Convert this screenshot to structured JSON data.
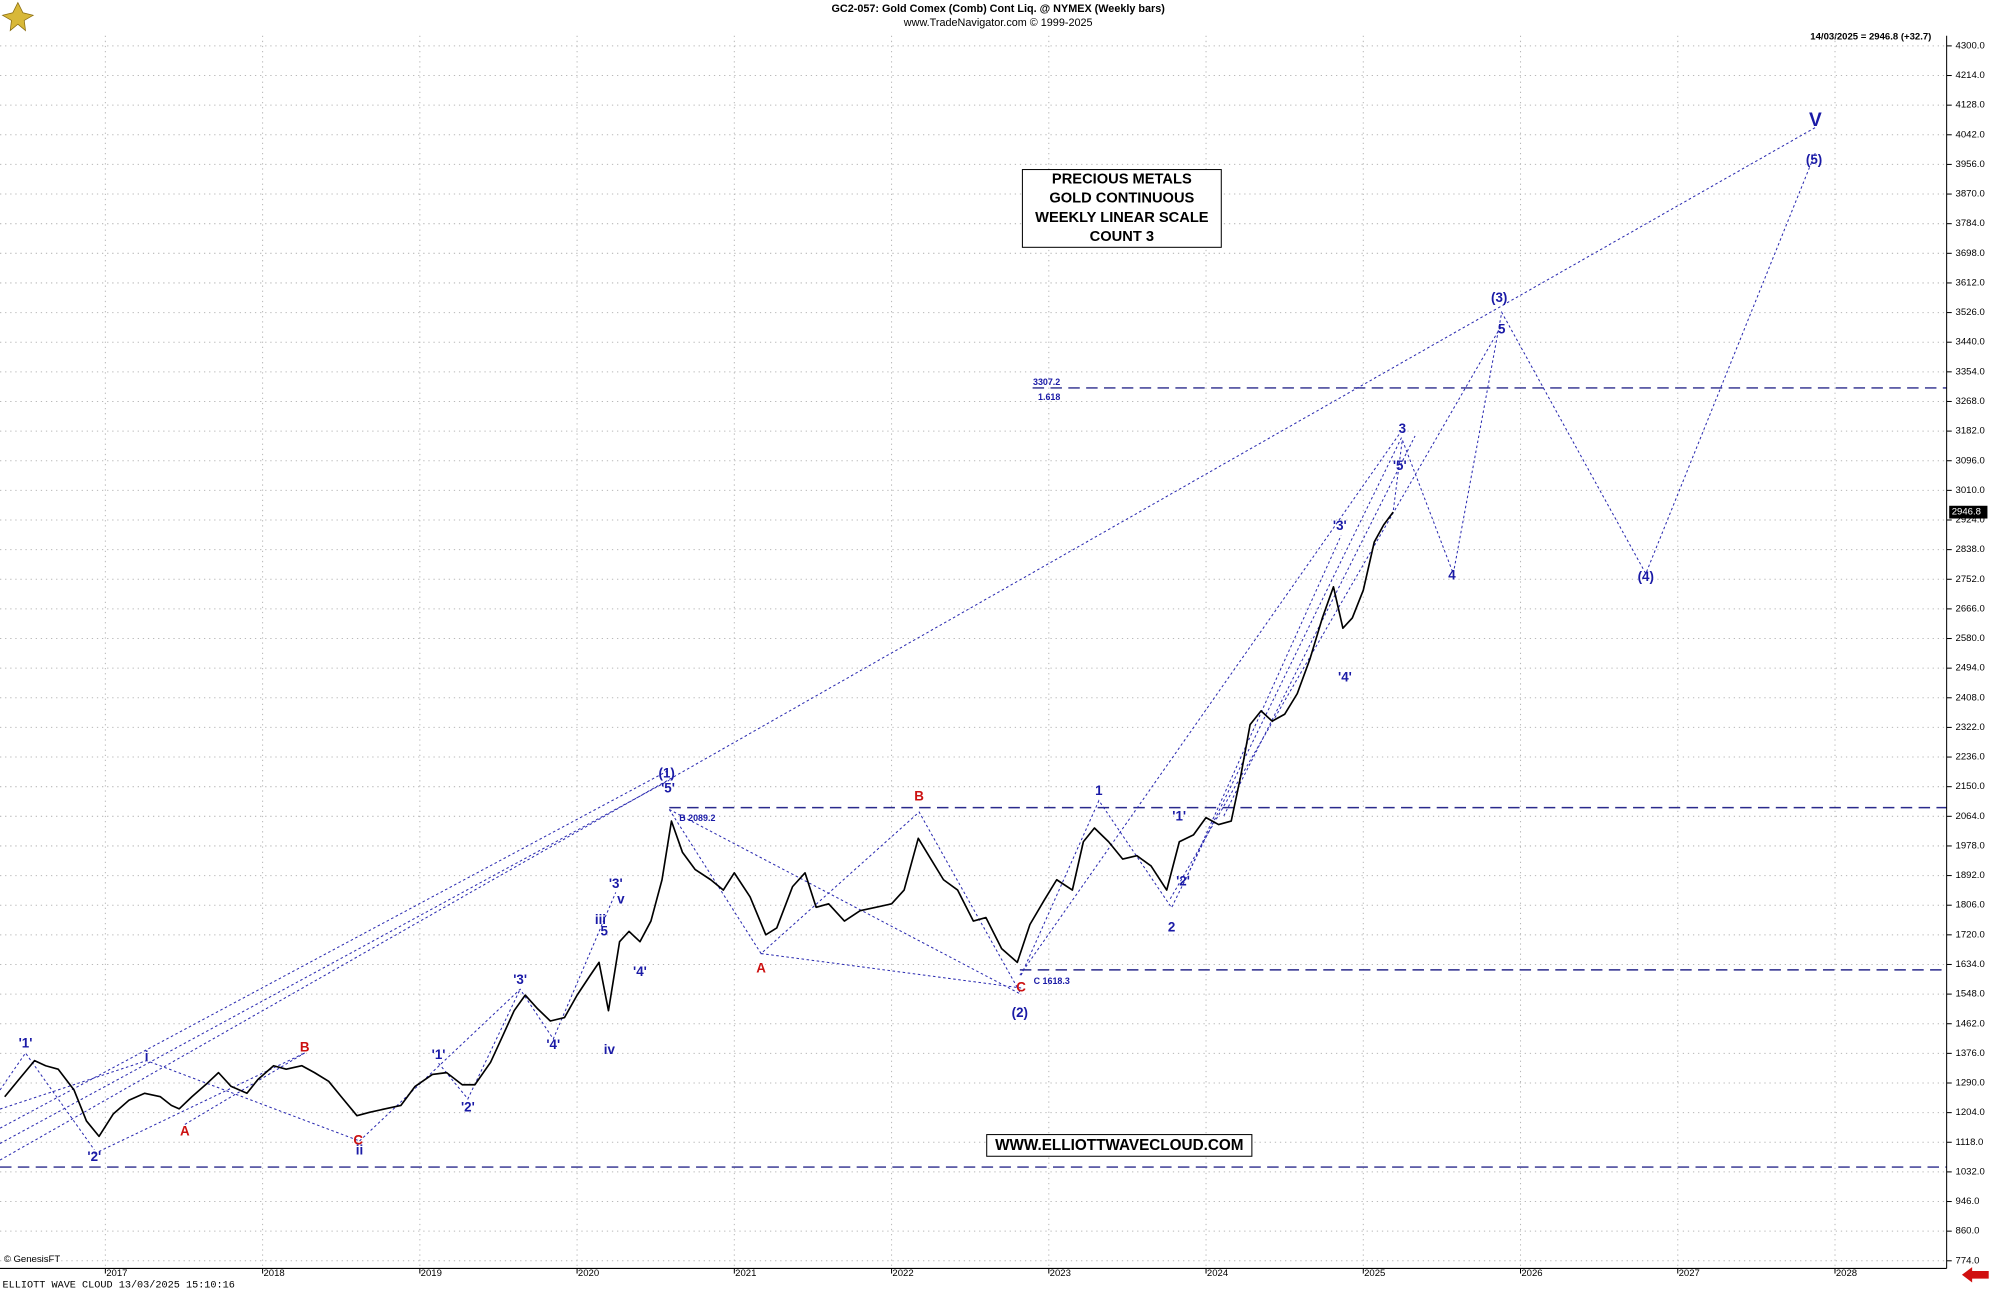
{
  "chart_data": {
    "type": "line",
    "title": "GC2-057:  Gold Comex (Comb) Cont Liq. @ NYMEX  (Weekly bars)",
    "subtitle": "www.TradeNavigator.com © 1999-2025",
    "status": "14/03/2025 = 2946.8 (+32.7)",
    "info_box": [
      "PRECIOUS METALS",
      "GOLD CONTINUOUS",
      "WEEKLY LINEAR SCALE",
      "COUNT 3"
    ],
    "watermark": "WWW.ELLIOTTWAVECLOUD.COM",
    "credit": "© GenesisFT",
    "footer": "ELLIOTT WAVE CLOUD   13/03/2025 15:10:16",
    "color": "#000000",
    "x": [
      2016.36,
      2016.45,
      2016.55,
      2016.62,
      2016.7,
      2016.8,
      2016.88,
      2016.96,
      2017.05,
      2017.15,
      2017.25,
      2017.35,
      2017.42,
      2017.47,
      2017.55,
      2017.65,
      2017.72,
      2017.8,
      2017.9,
      2017.97,
      2018.07,
      2018.15,
      2018.25,
      2018.33,
      2018.42,
      2018.5,
      2018.6,
      2018.68,
      2018.78,
      2018.88,
      2018.97,
      2019.08,
      2019.17,
      2019.27,
      2019.35,
      2019.45,
      2019.52,
      2019.6,
      2019.67,
      2019.75,
      2019.83,
      2019.92,
      2020.0,
      2020.08,
      2020.14,
      2020.2,
      2020.27,
      2020.33,
      2020.4,
      2020.47,
      2020.54,
      2020.6,
      2020.67,
      2020.75,
      2020.85,
      2020.93,
      2021.0,
      2021.1,
      2021.2,
      2021.27,
      2021.37,
      2021.45,
      2021.52,
      2021.6,
      2021.7,
      2021.8,
      2021.9,
      2022.0,
      2022.08,
      2022.17,
      2022.25,
      2022.33,
      2022.42,
      2022.52,
      2022.6,
      2022.7,
      2022.8,
      2022.88,
      2022.97,
      2023.05,
      2023.15,
      2023.22,
      2023.29,
      2023.38,
      2023.47,
      2023.56,
      2023.65,
      2023.75,
      2023.83,
      2023.92,
      2024.0,
      2024.08,
      2024.16,
      2024.22,
      2024.28,
      2024.35,
      2024.42,
      2024.5,
      2024.58,
      2024.66,
      2024.74,
      2024.81,
      2024.87,
      2024.93,
      2025.0,
      2025.07,
      2025.13,
      2025.19
    ],
    "values": [
      1250,
      1300,
      1355,
      1340,
      1330,
      1270,
      1180,
      1135,
      1200,
      1240,
      1260,
      1250,
      1225,
      1215,
      1250,
      1290,
      1320,
      1280,
      1260,
      1300,
      1340,
      1330,
      1340,
      1320,
      1295,
      1250,
      1195,
      1205,
      1215,
      1225,
      1280,
      1315,
      1320,
      1285,
      1285,
      1350,
      1420,
      1500,
      1545,
      1505,
      1470,
      1480,
      1545,
      1600,
      1640,
      1500,
      1700,
      1730,
      1700,
      1760,
      1880,
      2050,
      1960,
      1910,
      1880,
      1850,
      1900,
      1830,
      1720,
      1740,
      1860,
      1900,
      1800,
      1810,
      1760,
      1790,
      1800,
      1810,
      1850,
      2000,
      1940,
      1880,
      1850,
      1760,
      1770,
      1680,
      1640,
      1750,
      1820,
      1880,
      1850,
      1990,
      2030,
      1990,
      1940,
      1950,
      1920,
      1850,
      1990,
      2010,
      2060,
      2040,
      2050,
      2180,
      2330,
      2370,
      2340,
      2360,
      2420,
      2520,
      2640,
      2730,
      2610,
      2640,
      2720,
      2860,
      2910,
      2946.8
    ],
    "xlim": [
      2016.33,
      2028.71
    ],
    "xticks": [
      2017,
      2018,
      2019,
      2020,
      2021,
      2022,
      2023,
      2024,
      2025,
      2026,
      2027,
      2028
    ],
    "ylim": [
      774,
      4300
    ],
    "yticks": [
      {
        "value": 774,
        "label": "774.0"
      },
      {
        "value": 860,
        "label": "860.0"
      },
      {
        "value": 946,
        "label": "946.0"
      },
      {
        "value": 1032,
        "label": "1032.0"
      },
      {
        "value": 1118,
        "label": "1118.0"
      },
      {
        "value": 1204,
        "label": "1204.0"
      },
      {
        "value": 1290,
        "label": "1290.0"
      },
      {
        "value": 1376,
        "label": "1376.0"
      },
      {
        "value": 1462,
        "label": "1462.0"
      },
      {
        "value": 1548,
        "label": "1548.0"
      },
      {
        "value": 1634,
        "label": "1634.0"
      },
      {
        "value": 1720,
        "label": "1720.0"
      },
      {
        "value": 1806,
        "label": "1806.0"
      },
      {
        "value": 1892,
        "label": "1892.0"
      },
      {
        "value": 1978,
        "label": "1978.0"
      },
      {
        "value": 2064,
        "label": "2064.0"
      },
      {
        "value": 2150,
        "label": "2150.0"
      },
      {
        "value": 2236,
        "label": "2236.0"
      },
      {
        "value": 2322,
        "label": "2322.0"
      },
      {
        "value": 2408,
        "label": "2408.0"
      },
      {
        "value": 2494,
        "label": "2494.0"
      },
      {
        "value": 2580,
        "label": "2580.0"
      },
      {
        "value": 2666,
        "label": "2666.0"
      },
      {
        "value": 2752,
        "label": "2752.0"
      },
      {
        "value": 2838,
        "label": "2838.0"
      },
      {
        "value": 2924,
        "label": "2924.0"
      },
      {
        "value": 3010,
        "label": "3010.0"
      },
      {
        "value": 3096,
        "label": "3096.0"
      },
      {
        "value": 3182,
        "label": "3182.0"
      },
      {
        "value": 3268,
        "label": "3268.0"
      },
      {
        "value": 3354,
        "label": "3354.0"
      },
      {
        "value": 3440,
        "label": "3440.0"
      },
      {
        "value": 3526,
        "label": "3526.0"
      },
      {
        "value": 3612,
        "label": "3612.0"
      },
      {
        "value": 3698,
        "label": "3698.0"
      },
      {
        "value": 3784,
        "label": "3784.0"
      },
      {
        "value": 3870,
        "label": "3870.0"
      },
      {
        "value": 3956,
        "label": "3956.0"
      },
      {
        "value": 4042,
        "label": "4042.0"
      },
      {
        "value": 4128,
        "label": "4128.0"
      },
      {
        "value": 4214,
        "label": "4214.0"
      },
      {
        "value": 4300,
        "label": "4300.0"
      }
    ],
    "grid": true,
    "levels": [
      3307.2,
      2089.2,
      1618.3,
      1046
    ],
    "level_color": "#2a2a8c",
    "annotations": [
      {
        "text": "'1'",
        "color": "#1a1aa6"
      },
      {
        "text": "'2'",
        "color": "#1a1aa6"
      },
      {
        "text": "i",
        "color": "#1a1aa6"
      },
      {
        "text": "A",
        "color": "#cc1111"
      },
      {
        "text": "B",
        "color": "#cc1111"
      },
      {
        "text": "C",
        "color": "#cc1111"
      },
      {
        "text": "ii",
        "color": "#1a1aa6"
      },
      {
        "text": "'1'",
        "color": "#1a1aa6"
      },
      {
        "text": "'2'",
        "color": "#1a1aa6"
      },
      {
        "text": "'3'",
        "color": "#1a1aa6"
      },
      {
        "text": "'4'",
        "color": "#1a1aa6"
      },
      {
        "text": "iii",
        "color": "#1a1aa6"
      },
      {
        "text": "5",
        "color": "#1a1aa6"
      },
      {
        "text": "v",
        "color": "#1a1aa6"
      },
      {
        "text": "'3'",
        "color": "#1a1aa6"
      },
      {
        "text": "iv",
        "color": "#1a1aa6"
      },
      {
        "text": "'4'",
        "color": "#1a1aa6"
      },
      {
        "text": "(1)",
        "color": "#1a1aa6"
      },
      {
        "text": "'5'",
        "color": "#1a1aa6"
      },
      {
        "text": "B 2089.2",
        "color": "#1a1aa6"
      },
      {
        "text": "A",
        "color": "#cc1111"
      },
      {
        "text": "B",
        "color": "#cc1111"
      },
      {
        "text": "C",
        "color": "#cc1111"
      },
      {
        "text": "C 1618.3",
        "color": "#1a1aa6"
      },
      {
        "text": "(2)",
        "color": "#1a1aa6"
      },
      {
        "text": "1",
        "color": "#1a1aa6"
      },
      {
        "text": "2",
        "color": "#1a1aa6"
      },
      {
        "text": "'1'",
        "color": "#1a1aa6"
      },
      {
        "text": "'2'",
        "color": "#1a1aa6"
      },
      {
        "text": "'3'",
        "color": "#1a1aa6"
      },
      {
        "text": "'4'",
        "color": "#1a1aa6"
      },
      {
        "text": "'5'",
        "color": "#1a1aa6"
      },
      {
        "text": "3",
        "color": "#1a1aa6"
      },
      {
        "text": "4",
        "color": "#1a1aa6"
      },
      {
        "text": "(3)",
        "color": "#1a1aa6"
      },
      {
        "text": "5",
        "color": "#1a1aa6"
      },
      {
        "text": "(4)",
        "color": "#1a1aa6"
      },
      {
        "text": "V",
        "color": "#1a1aa6"
      },
      {
        "text": "(5)",
        "color": "#1a1aa6"
      },
      {
        "text": "3307.2",
        "color": "#1a1aa6"
      },
      {
        "text": "1.618",
        "color": "#1a1aa6"
      }
    ]
  }
}
